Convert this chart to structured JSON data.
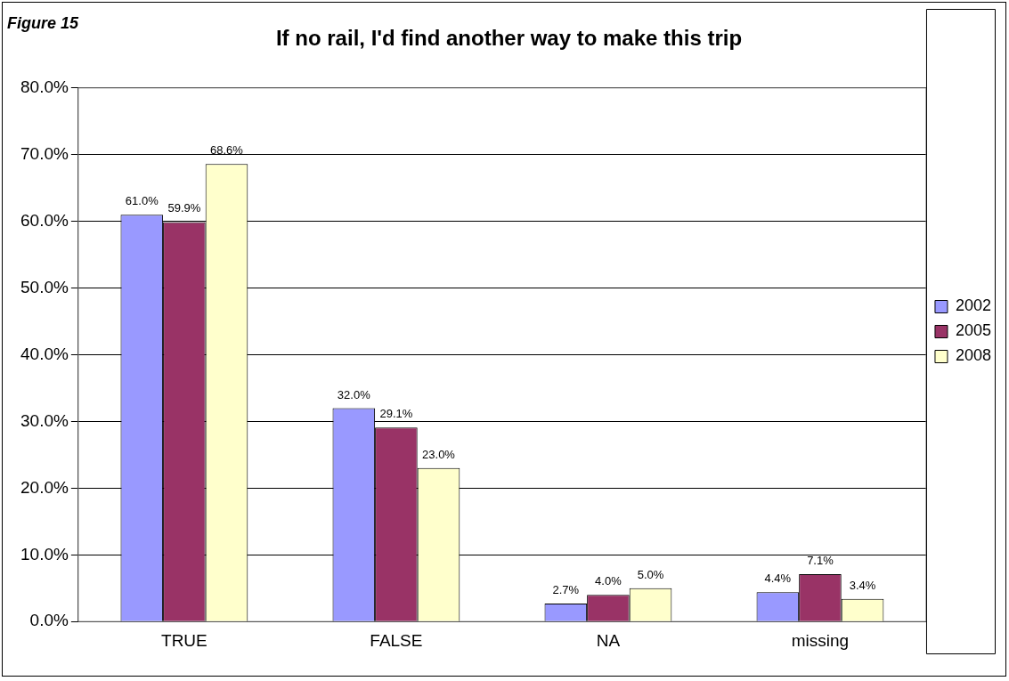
{
  "chart_data": {
    "type": "bar",
    "title": "If no rail, I'd find another way to make this trip",
    "annotations": [
      "Figure 15"
    ],
    "categories": [
      "TRUE",
      "FALSE",
      "NA",
      "missing"
    ],
    "series": [
      {
        "name": "2002",
        "color": "#9999ff",
        "values": [
          61.0,
          32.0,
          2.7,
          4.4
        ],
        "value_labels": [
          "61.0%",
          "32.0%",
          "2.7%",
          "4.4%"
        ]
      },
      {
        "name": "2005",
        "color": "#993366",
        "values": [
          59.9,
          29.1,
          4.0,
          7.1
        ],
        "value_labels": [
          "59.9%",
          "29.1%",
          "4.0%",
          "7.1%"
        ]
      },
      {
        "name": "2008",
        "color": "#ffffcc",
        "values": [
          68.6,
          23.0,
          5.0,
          3.4
        ],
        "value_labels": [
          "68.6%",
          "23.0%",
          "5.0%",
          "3.4%"
        ]
      }
    ],
    "ylim": [
      0,
      80
    ],
    "yticks": [
      {
        "value": 0,
        "label": "0.0%"
      },
      {
        "value": 10,
        "label": "10.0%"
      },
      {
        "value": 20,
        "label": "20.0%"
      },
      {
        "value": 30,
        "label": "30.0%"
      },
      {
        "value": 40,
        "label": "40.0%"
      },
      {
        "value": 50,
        "label": "50.0%"
      },
      {
        "value": 60,
        "label": "60.0%"
      },
      {
        "value": 70,
        "label": "70.0%"
      },
      {
        "value": 80,
        "label": "80.0%"
      }
    ],
    "grid": "y",
    "legend": "right"
  }
}
